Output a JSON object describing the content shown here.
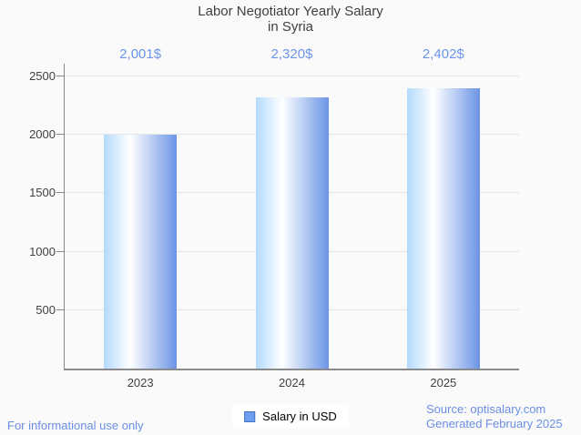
{
  "chart_data": {
    "type": "bar",
    "title": "Labor Negotiator Yearly Salary in Syria",
    "title_lines": [
      "Labor Negotiator Yearly Salary",
      "in Syria"
    ],
    "categories": [
      "2023",
      "2024",
      "2025"
    ],
    "series": [
      {
        "name": "Salary in USD",
        "values": [
          2001,
          2320,
          2402
        ],
        "value_labels": [
          "2,001$",
          "2,320$",
          "2,402$"
        ]
      }
    ],
    "xlabel": "",
    "ylabel": "",
    "ylim": [
      0,
      2500
    ],
    "yticks": [
      500,
      1000,
      1500,
      2000,
      2500
    ],
    "grid": true,
    "legend_position": "bottom"
  },
  "legend": {
    "item_label": "Salary in USD"
  },
  "footer": {
    "left_note": "For informational use only",
    "source": "Source: optisalary.com",
    "generated": "Generated February 2025"
  },
  "colors": {
    "background": "#fafafa",
    "title_text": "#3f3f3f",
    "tick_text": "#3f3f3f",
    "axis_line": "#8a8a8a",
    "grid_line": "#e4e4e4",
    "value_label": "#6c95ea",
    "footer_text": "#6b8fe4",
    "legend_bg": "#ffffff",
    "legend_swatch_fill": "#6d9eeb",
    "legend_swatch_border": "#3f74c8",
    "bar_gradient_left": "#b3dafc",
    "bar_gradient_mid": "#ffffff",
    "bar_gradient_right": "#6b94e6",
    "bar_gradient_mid_stop_pct": 36
  }
}
